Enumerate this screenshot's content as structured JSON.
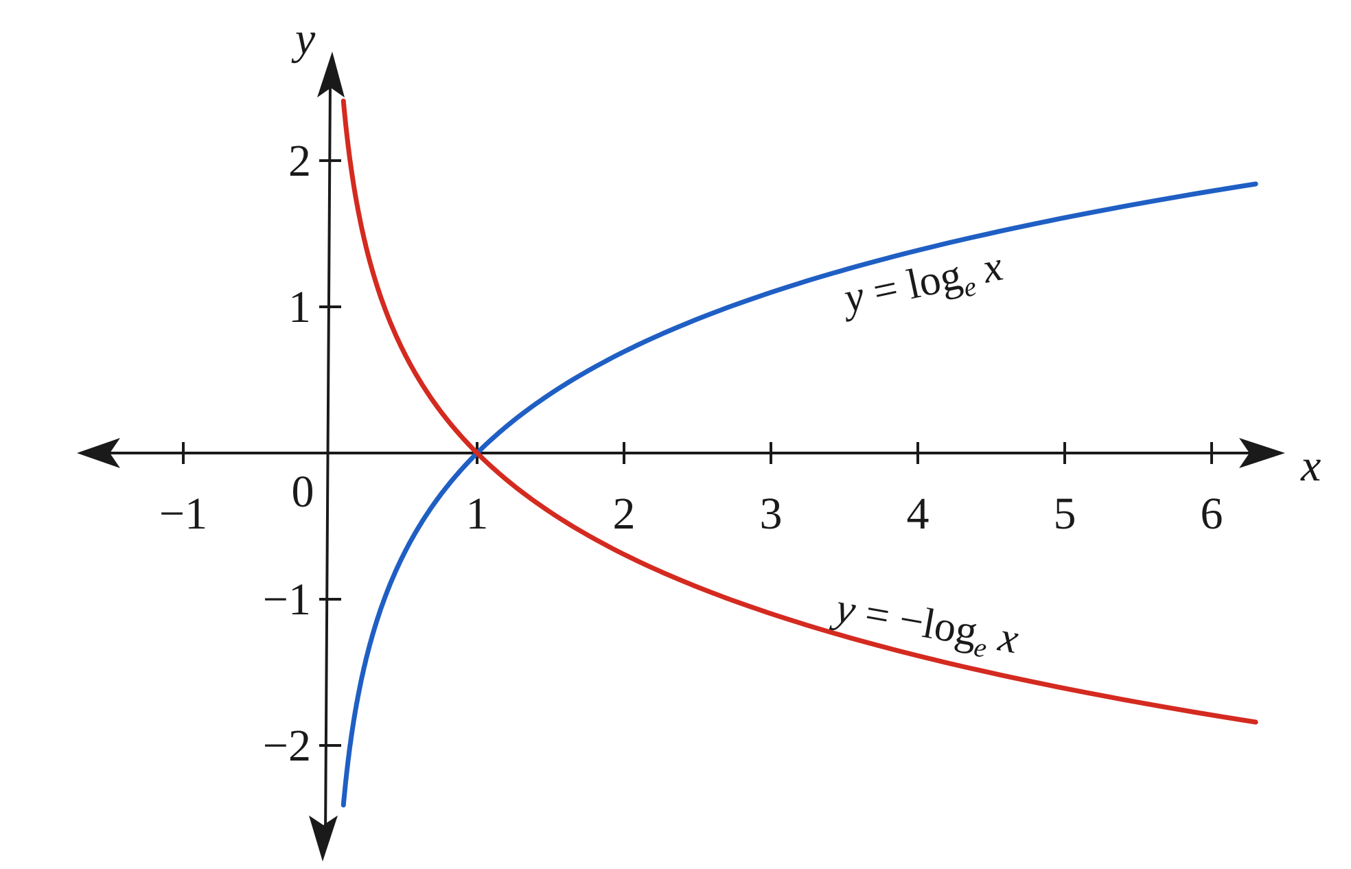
{
  "chart_data": {
    "type": "line",
    "xlabel": "x",
    "ylabel": "y",
    "xlim": [
      -1.7,
      6.5
    ],
    "ylim": [
      -2.75,
      2.6
    ],
    "grid": false,
    "x_ticks": [
      -1,
      0,
      1,
      2,
      3,
      4,
      5,
      6
    ],
    "x_tick_labels": [
      "−1",
      "0",
      "1",
      "2",
      "3",
      "4",
      "5",
      "6"
    ],
    "y_ticks": [
      -2,
      -1,
      1,
      2
    ],
    "y_tick_labels": [
      "−2",
      "−1",
      "1",
      "2"
    ],
    "series": [
      {
        "name": "y = logₑ x",
        "label_main": "y = log",
        "label_sub": "e",
        "label_tail": " x",
        "function": "ln(x)",
        "x_range": [
          0.09,
          6.3
        ],
        "color": "#1f5fc4",
        "points": [
          [
            0.1,
            -2.3
          ],
          [
            0.5,
            -0.69
          ],
          [
            1,
            0
          ],
          [
            2,
            0.69
          ],
          [
            3,
            1.1
          ],
          [
            4,
            1.39
          ],
          [
            5,
            1.61
          ],
          [
            6,
            1.79
          ],
          [
            6.3,
            1.84
          ]
        ]
      },
      {
        "name": "y = −logₑ x",
        "label_main": "y = −log",
        "label_sub": "e",
        "label_tail": " x",
        "function": "-ln(x)",
        "x_range": [
          0.09,
          6.3
        ],
        "color": "#d42a20",
        "points": [
          [
            0.1,
            2.3
          ],
          [
            0.5,
            0.69
          ],
          [
            1,
            0
          ],
          [
            2,
            -0.69
          ],
          [
            3,
            -1.1
          ],
          [
            4,
            -1.39
          ],
          [
            5,
            -1.61
          ],
          [
            6,
            -1.79
          ],
          [
            6.3,
            -1.84
          ]
        ]
      }
    ]
  }
}
